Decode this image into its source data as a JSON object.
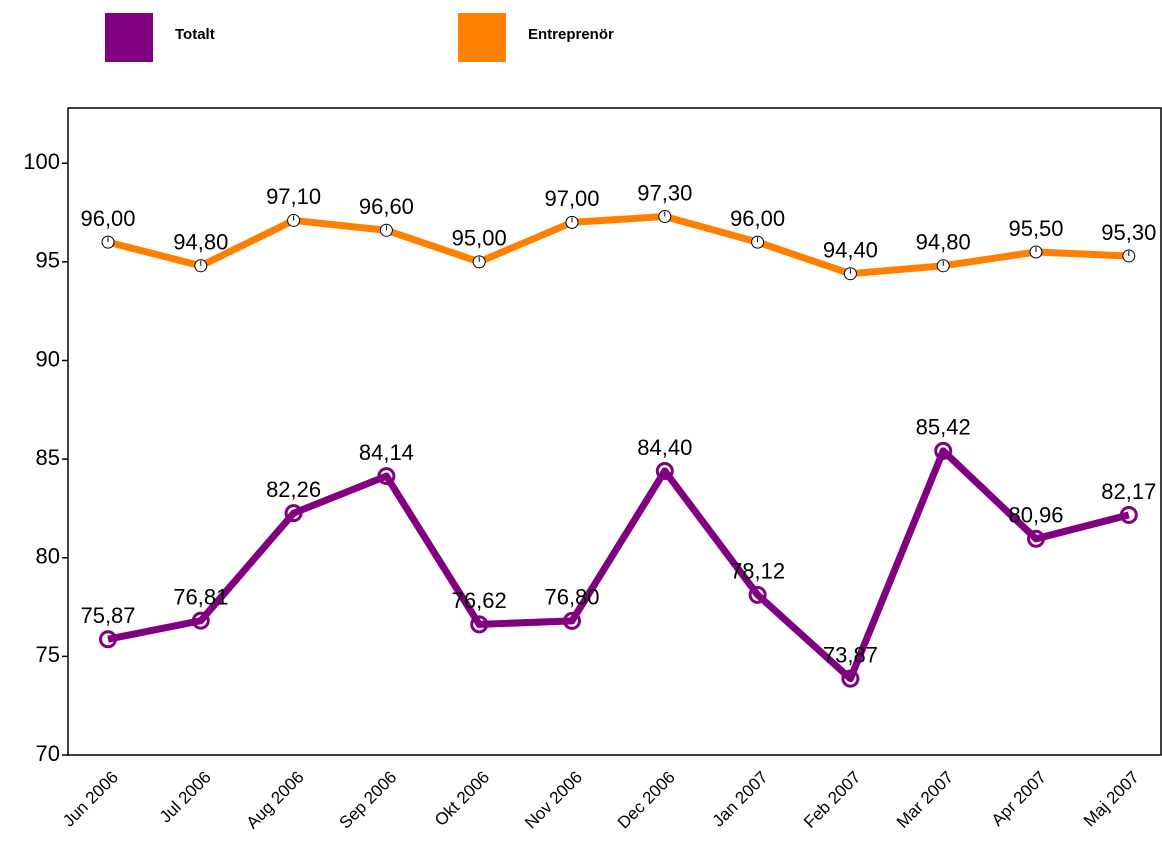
{
  "chart_data": {
    "type": "line",
    "categories": [
      "Jun 2006",
      "Jul 2006",
      "Aug 2006",
      "Sep 2006",
      "Okt 2006",
      "Nov 2006",
      "Dec 2006",
      "Jan 2007",
      "Feb 2007",
      "Mar 2007",
      "Apr 2007",
      "Maj 2007"
    ],
    "series": [
      {
        "name": "Totalt",
        "color": "#800080",
        "values": [
          75.87,
          76.81,
          82.26,
          84.14,
          76.62,
          76.8,
          84.4,
          78.12,
          73.87,
          85.42,
          80.96,
          82.17
        ],
        "value_labels": [
          "75,87",
          "76,81",
          "82,26",
          "84,14",
          "76,62",
          "76,80",
          "84,40",
          "78,12",
          "73,87",
          "85,42",
          "80,96",
          "82,17"
        ]
      },
      {
        "name": "Entreprenör",
        "color": "#ff8000",
        "values": [
          96.0,
          94.8,
          97.1,
          96.6,
          95.0,
          97.0,
          97.3,
          96.0,
          94.4,
          94.8,
          95.5,
          95.3
        ],
        "value_labels": [
          "96,00",
          "94,80",
          "97,10",
          "96,60",
          "95,00",
          "97,00",
          "97,30",
          "96,00",
          "94,40",
          "94,80",
          "95,50",
          "95,30"
        ]
      }
    ],
    "ylim": [
      70,
      102.8
    ],
    "yticks": [
      70,
      75,
      80,
      85,
      90,
      95,
      100
    ]
  }
}
